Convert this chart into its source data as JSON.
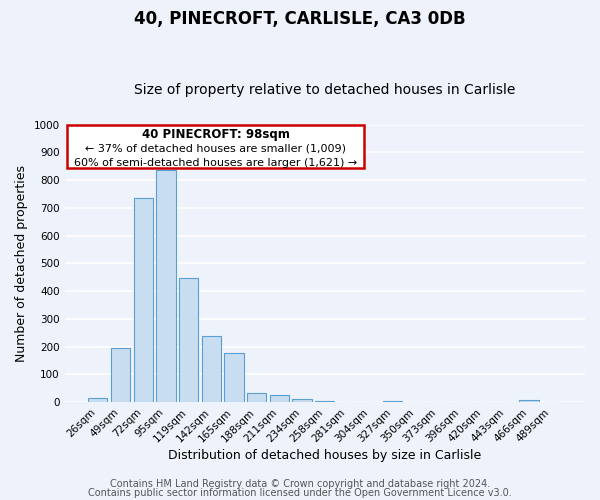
{
  "title": "40, PINECROFT, CARLISLE, CA3 0DB",
  "subtitle": "Size of property relative to detached houses in Carlisle",
  "xlabel": "Distribution of detached houses by size in Carlisle",
  "ylabel": "Number of detached properties",
  "bar_labels": [
    "26sqm",
    "49sqm",
    "72sqm",
    "95sqm",
    "119sqm",
    "142sqm",
    "165sqm",
    "188sqm",
    "211sqm",
    "234sqm",
    "258sqm",
    "281sqm",
    "304sqm",
    "327sqm",
    "350sqm",
    "373sqm",
    "396sqm",
    "420sqm",
    "443sqm",
    "466sqm",
    "489sqm"
  ],
  "bar_values": [
    15,
    197,
    735,
    835,
    447,
    240,
    177,
    35,
    25,
    13,
    5,
    0,
    0,
    5,
    0,
    0,
    0,
    0,
    0,
    8,
    0
  ],
  "bar_color": "#c9ddf0",
  "bar_edge_color": "#5a9fd4",
  "ylim": [
    0,
    1000
  ],
  "yticks": [
    0,
    100,
    200,
    300,
    400,
    500,
    600,
    700,
    800,
    900,
    1000
  ],
  "annotation_title": "40 PINECROFT: 98sqm",
  "annotation_line1": "← 37% of detached houses are smaller (1,009)",
  "annotation_line2": "60% of semi-detached houses are larger (1,621) →",
  "annotation_box_color": "#ffffff",
  "annotation_box_edge_color": "#cc0000",
  "footer_line1": "Contains HM Land Registry data © Crown copyright and database right 2024.",
  "footer_line2": "Contains public sector information licensed under the Open Government Licence v3.0.",
  "background_color": "#eef2fb",
  "plot_background": "#eef2fb",
  "grid_color": "#ffffff",
  "title_fontsize": 12,
  "subtitle_fontsize": 10,
  "axis_label_fontsize": 9,
  "tick_fontsize": 7.5,
  "footer_fontsize": 7
}
